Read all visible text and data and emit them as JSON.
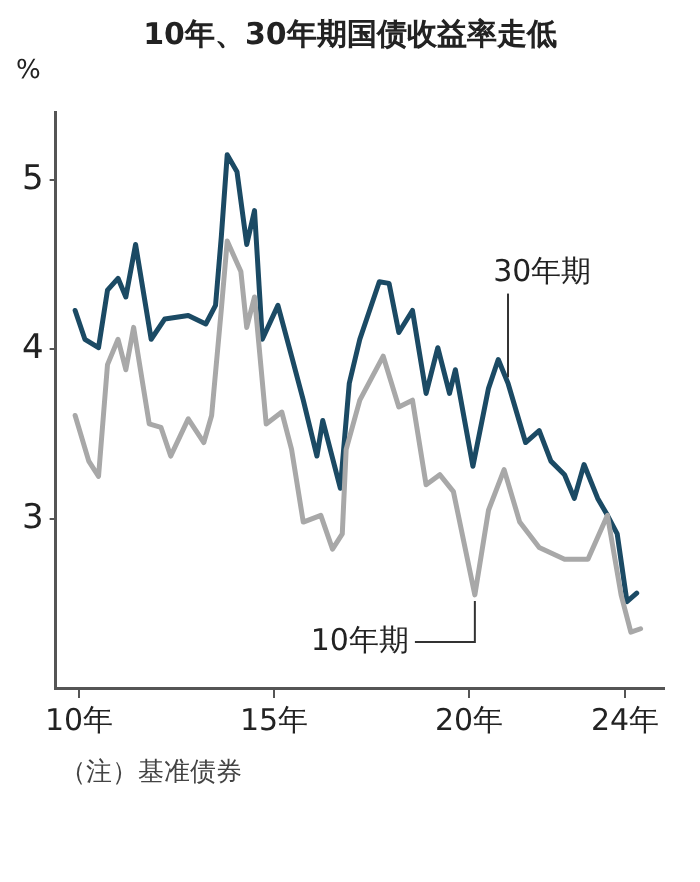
{
  "chart_data": {
    "type": "line",
    "title": "10年、30年期国债收益率走低",
    "ylabel": "%",
    "annotations": [
      "（注）基准债券"
    ],
    "xlim": [
      9.4,
      25
    ],
    "xticks": [
      {
        "value": 10,
        "label": "10年"
      },
      {
        "value": 15,
        "label": "15年"
      },
      {
        "value": 20,
        "label": "20年"
      },
      {
        "value": 24,
        "label": "24年"
      }
    ],
    "ylim": [
      2,
      5.4
    ],
    "yticks": [
      3,
      4,
      5
    ],
    "grid": false,
    "legend": false,
    "marker": "none",
    "line_style": "solid",
    "series": [
      {
        "name": "30年期",
        "color": "#1b4a64",
        "x": [
          9.9,
          10.15,
          10.5,
          10.73,
          11.0,
          11.2,
          11.45,
          11.85,
          12.2,
          12.8,
          13.25,
          13.5,
          13.65,
          13.8,
          14.05,
          14.3,
          14.5,
          14.7,
          15.1,
          15.45,
          15.75,
          16.1,
          16.25,
          16.7,
          16.93,
          17.2,
          17.7,
          17.95,
          18.2,
          18.55,
          18.9,
          19.2,
          19.5,
          19.65,
          20.1,
          20.5,
          20.75,
          21.0,
          21.45,
          21.8,
          22.1,
          22.45,
          22.7,
          22.95,
          23.3,
          23.55,
          23.8,
          24.05,
          24.3
        ],
        "values": [
          4.23,
          4.06,
          4.01,
          4.35,
          4.42,
          4.31,
          4.62,
          4.06,
          4.18,
          4.2,
          4.15,
          4.26,
          4.67,
          5.15,
          5.05,
          4.62,
          4.82,
          4.06,
          4.26,
          3.96,
          3.7,
          3.37,
          3.58,
          3.18,
          3.8,
          4.06,
          4.4,
          4.39,
          4.1,
          4.23,
          3.74,
          4.01,
          3.74,
          3.88,
          3.31,
          3.77,
          3.94,
          3.8,
          3.45,
          3.52,
          3.34,
          3.26,
          3.12,
          3.32,
          3.12,
          3.02,
          2.91,
          2.51,
          2.56
        ]
      },
      {
        "name": "10年期",
        "color": "#a8a8a8",
        "x": [
          9.9,
          10.25,
          10.5,
          10.73,
          11.0,
          11.2,
          11.4,
          11.8,
          12.1,
          12.35,
          12.8,
          13.2,
          13.4,
          13.65,
          13.8,
          14.15,
          14.3,
          14.5,
          14.8,
          15.2,
          15.45,
          15.75,
          16.2,
          16.5,
          16.75,
          16.85,
          17.2,
          17.8,
          18.2,
          18.55,
          18.9,
          19.25,
          19.6,
          20.15,
          20.5,
          20.9,
          21.3,
          21.8,
          22.45,
          23.05,
          23.55,
          23.9,
          24.15,
          24.4
        ],
        "values": [
          3.61,
          3.34,
          3.25,
          3.91,
          4.06,
          3.88,
          4.13,
          3.56,
          3.54,
          3.37,
          3.59,
          3.45,
          3.61,
          4.24,
          4.64,
          4.46,
          4.13,
          4.31,
          3.56,
          3.63,
          3.41,
          2.98,
          3.02,
          2.82,
          2.91,
          3.41,
          3.7,
          3.96,
          3.66,
          3.7,
          3.2,
          3.26,
          3.16,
          2.55,
          3.05,
          3.29,
          2.98,
          2.83,
          2.76,
          2.76,
          3.02,
          2.55,
          2.33,
          2.35
        ]
      }
    ]
  }
}
